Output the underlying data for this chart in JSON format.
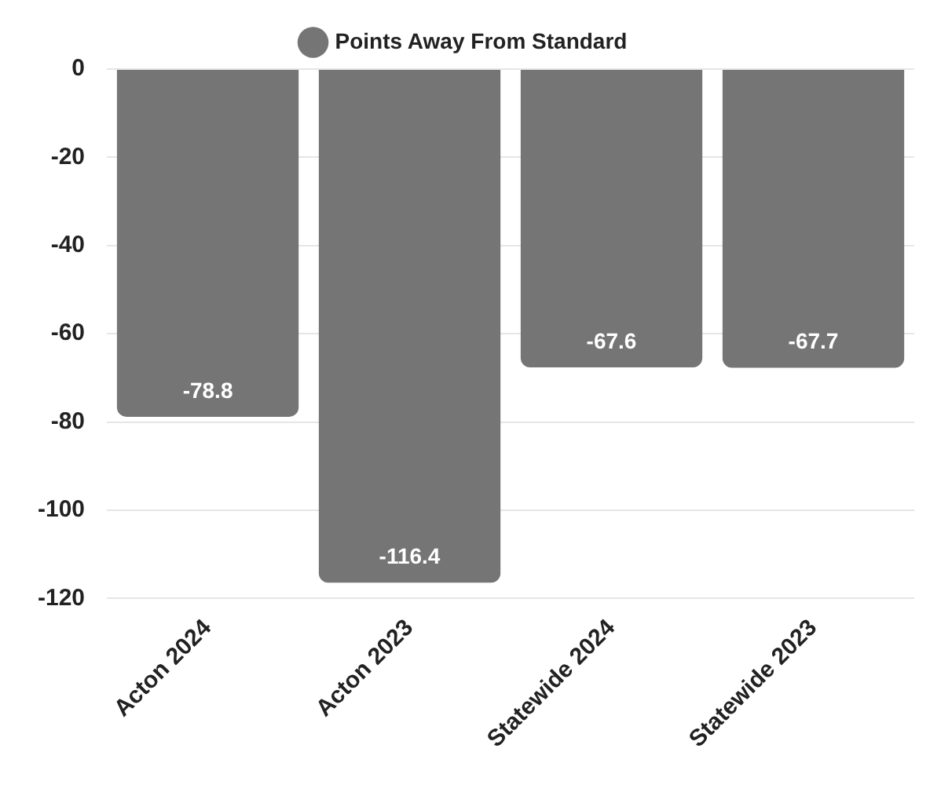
{
  "chart_data": {
    "type": "bar",
    "categories": [
      "Acton 2024",
      "Acton 2023",
      "Statewide 2024",
      "Statewide 2023"
    ],
    "series": [
      {
        "name": "Points Away From Standard",
        "color": "#757575",
        "values": [
          -78.8,
          -116.4,
          -67.6,
          -67.7
        ]
      }
    ],
    "ylim": [
      -120,
      0
    ],
    "yticks": [
      -120,
      -100,
      -80,
      -60,
      -40,
      -20,
      0
    ],
    "grid": "y",
    "legend": "top",
    "data_labels": true
  }
}
